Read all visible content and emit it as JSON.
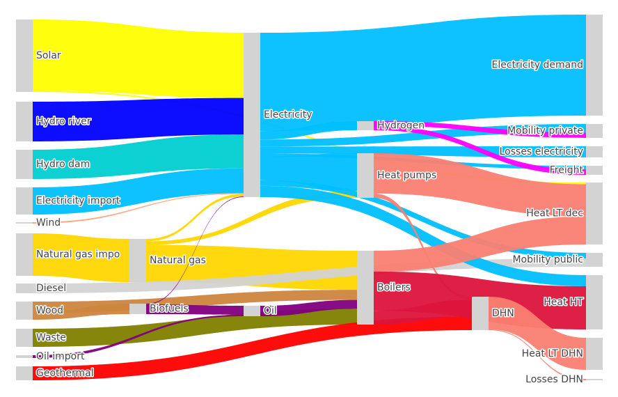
{
  "chart_data": {
    "type": "sankey",
    "node_color": "#d3d3d3",
    "nodes": [
      {
        "id": "solar",
        "label": "Solar"
      },
      {
        "id": "hydro_river",
        "label": "Hydro river"
      },
      {
        "id": "hydro_dam",
        "label": "Hydro dam"
      },
      {
        "id": "elec_import",
        "label": "Electricity import"
      },
      {
        "id": "wind",
        "label": "Wind"
      },
      {
        "id": "natgas_import",
        "label": "Natural gas impo"
      },
      {
        "id": "diesel",
        "label": "Diesel"
      },
      {
        "id": "wood",
        "label": "Wood"
      },
      {
        "id": "waste",
        "label": "Waste"
      },
      {
        "id": "oil_import",
        "label": "Oil import"
      },
      {
        "id": "geothermal",
        "label": "Geothermal"
      },
      {
        "id": "natural_gas",
        "label": "Natural gas"
      },
      {
        "id": "biofuels",
        "label": "Biofuels"
      },
      {
        "id": "oil",
        "label": "Oil"
      },
      {
        "id": "electricity",
        "label": "Electricity"
      },
      {
        "id": "hydrogen",
        "label": "Hydrogen"
      },
      {
        "id": "heat_pumps",
        "label": "Heat pumps"
      },
      {
        "id": "boilers",
        "label": "Boilers"
      },
      {
        "id": "dhn",
        "label": "DHN"
      },
      {
        "id": "elec_demand",
        "label": "Electricity demand"
      },
      {
        "id": "mob_private",
        "label": "Mobility private"
      },
      {
        "id": "losses_elec",
        "label": "Losses electricity"
      },
      {
        "id": "freight",
        "label": "Freight"
      },
      {
        "id": "heat_lt_dec",
        "label": "Heat LT dec"
      },
      {
        "id": "mob_public",
        "label": "Mobility public"
      },
      {
        "id": "heat_ht",
        "label": "Heat HT"
      },
      {
        "id": "heat_lt_dhn",
        "label": "Heat LT DHN"
      },
      {
        "id": "losses_dhn",
        "label": "Losses DHN"
      }
    ],
    "links": [
      {
        "source": "solar",
        "target": "electricity",
        "value": 100,
        "color": "#ffff00"
      },
      {
        "source": "solar",
        "target": "heat_lt_dec",
        "value": 2,
        "color": "#ffff00"
      },
      {
        "source": "hydro_river",
        "target": "electricity",
        "value": 56,
        "color": "#0000ff"
      },
      {
        "source": "hydro_dam",
        "target": "electricity",
        "value": 52,
        "color": "#00ced1"
      },
      {
        "source": "elec_import",
        "target": "electricity",
        "value": 38,
        "color": "#00bfff"
      },
      {
        "source": "wind",
        "target": "electricity",
        "value": 1,
        "color": "#ffa07a"
      },
      {
        "source": "natgas_import",
        "target": "natural_gas",
        "value": 72,
        "color": "#ffd700"
      },
      {
        "source": "natural_gas",
        "target": "boilers",
        "value": 62,
        "color": "#ffd700"
      },
      {
        "source": "natural_gas",
        "target": "electricity",
        "value": 4,
        "color": "#ffd700"
      },
      {
        "source": "natural_gas",
        "target": "heat_pumps",
        "value": 6,
        "color": "#ffd700"
      },
      {
        "source": "diesel",
        "target": "mob_public",
        "value": 12,
        "color": "#d3d3d3"
      },
      {
        "source": "wood",
        "target": "boilers",
        "value": 16,
        "color": "#cd853f"
      },
      {
        "source": "wood",
        "target": "biofuels",
        "value": 10,
        "color": "#cd853f"
      },
      {
        "source": "waste",
        "target": "boilers",
        "value": 25,
        "color": "#808000"
      },
      {
        "source": "oil_import",
        "target": "oil",
        "value": 2,
        "color": "#800080"
      },
      {
        "source": "geothermal",
        "target": "dhn",
        "value": 18,
        "color": "#ff0000"
      },
      {
        "source": "biofuels",
        "target": "oil",
        "value": 12,
        "color": "#800080"
      },
      {
        "source": "biofuels",
        "target": "electricity",
        "value": 1,
        "color": "#800080"
      },
      {
        "source": "oil",
        "target": "boilers",
        "value": 14,
        "color": "#800080"
      },
      {
        "source": "electricity",
        "target": "elec_demand",
        "value": 140,
        "color": "#00bfff"
      },
      {
        "source": "electricity",
        "target": "hydrogen",
        "value": 12,
        "color": "#00bfff"
      },
      {
        "source": "electricity",
        "target": "mob_private",
        "value": 10,
        "color": "#00bfff"
      },
      {
        "source": "electricity",
        "target": "losses_elec",
        "value": 10,
        "color": "#00bfff"
      },
      {
        "source": "electricity",
        "target": "freight",
        "value": 4,
        "color": "#00bfff"
      },
      {
        "source": "electricity",
        "target": "heat_pumps",
        "value": 34,
        "color": "#00bfff"
      },
      {
        "source": "electricity",
        "target": "mob_public",
        "value": 8,
        "color": "#00bfff"
      },
      {
        "source": "electricity",
        "target": "heat_ht",
        "value": 16,
        "color": "#00bfff"
      },
      {
        "source": "hydrogen",
        "target": "mob_private",
        "value": 6,
        "color": "#ff00ff"
      },
      {
        "source": "hydrogen",
        "target": "freight",
        "value": 6,
        "color": "#ff00ff"
      },
      {
        "source": "heat_pumps",
        "target": "heat_lt_dec",
        "value": 38,
        "color": "#fa8072"
      },
      {
        "source": "heat_pumps",
        "target": "dhn",
        "value": 4,
        "color": "#fa8072"
      },
      {
        "source": "boilers",
        "target": "heat_lt_dec",
        "value": 33,
        "color": "#fa8072"
      },
      {
        "source": "boilers",
        "target": "heat_ht",
        "value": 62,
        "color": "#dc143c"
      },
      {
        "source": "boilers",
        "target": "dhn",
        "value": 22,
        "color": "#dc143c"
      },
      {
        "source": "dhn",
        "target": "heat_lt_dhn",
        "value": 44,
        "color": "#fa8072"
      },
      {
        "source": "dhn",
        "target": "losses_dhn",
        "value": 1,
        "color": "#fa8072"
      }
    ]
  }
}
